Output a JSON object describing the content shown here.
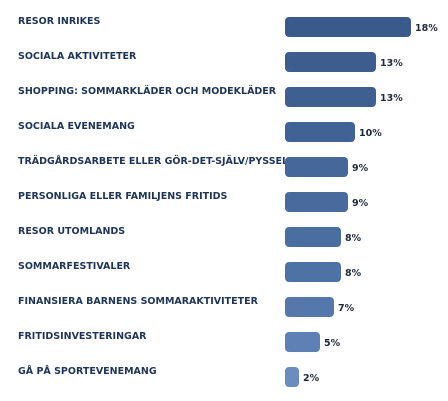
{
  "chart_data": {
    "type": "bar",
    "orientation": "horizontal",
    "categories": [
      "RESOR INRIKES",
      "SOCIALA AKTIVITETER",
      "SHOPPING: SOMMARKLÄDER OCH MODEKLÄDER",
      "SOCIALA EVENEMANG",
      "TRÄDGÅRDSARBETE ELLER GÖR-DET-SJÄLV/PYSSEL",
      "PERSONLIGA ELLER FAMILJENS FRITIDS",
      "RESOR UTOMLANDS",
      "SOMMARFESTIVALER",
      "FINANSIERA BARNENS SOMMARAKTIVITETER",
      "FRITIDSINVESTERINGAR",
      "GÅ PÅ SPORTEVENEMANG"
    ],
    "values": [
      18,
      13,
      13,
      10,
      9,
      9,
      8,
      8,
      7,
      5,
      2
    ],
    "value_labels": [
      "18%",
      "13%",
      "13%",
      "10%",
      "9%",
      "9%",
      "8%",
      "8%",
      "7%",
      "5%",
      "2%"
    ],
    "title": "",
    "xlabel": "",
    "ylabel": "",
    "xlim": [
      0,
      18
    ],
    "grid": false,
    "legend": "none",
    "bar_colors": [
      "#3a5a8c",
      "#3d5d8f",
      "#3f5f91",
      "#416294",
      "#456799",
      "#486a9c",
      "#4b6ea1",
      "#4f72a6",
      "#5577ac",
      "#5e80b4",
      "#6a8cbf"
    ]
  }
}
